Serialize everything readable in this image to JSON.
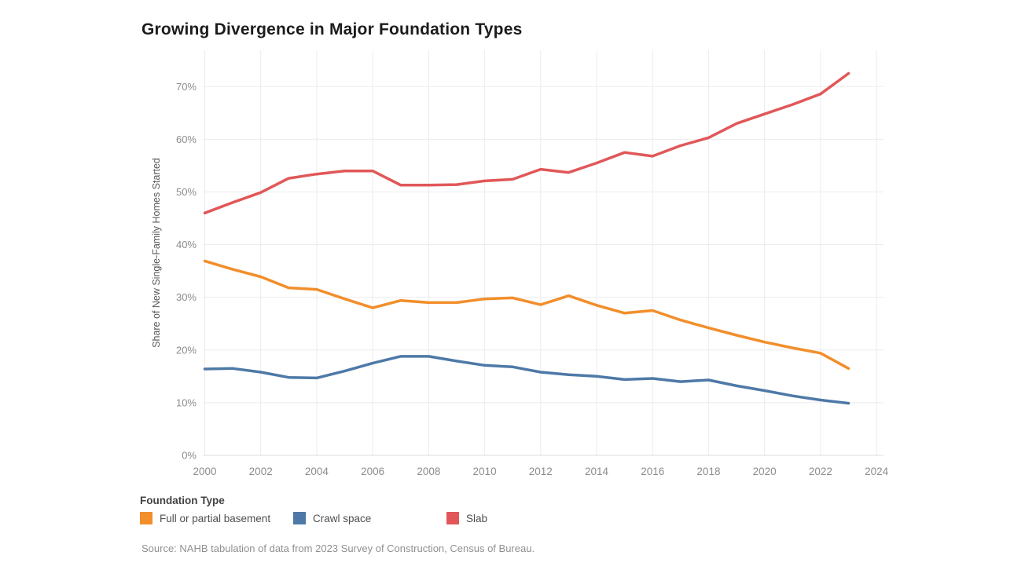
{
  "title": "Growing Divergence in Major Foundation Types",
  "source": "Source: NAHB tabulation of data from 2023 Survey of Construction, Census of Bureau.",
  "legend": {
    "title": "Foundation Type",
    "items": [
      {
        "label": "Full or partial basement",
        "color": "#f28e2b"
      },
      {
        "label": "Crawl space",
        "color": "#4e79a7"
      },
      {
        "label": "Slab",
        "color": "#e15759"
      }
    ]
  },
  "chart_data": {
    "type": "line",
    "title": "Growing Divergence in Major Foundation Types",
    "xlabel": "",
    "ylabel": "Share of New Single-Family Homes Started",
    "x": [
      2000,
      2001,
      2002,
      2003,
      2004,
      2005,
      2006,
      2007,
      2008,
      2009,
      2010,
      2011,
      2012,
      2013,
      2014,
      2015,
      2016,
      2017,
      2018,
      2019,
      2020,
      2021,
      2022,
      2023
    ],
    "series": [
      {
        "name": "Full or partial basement",
        "color": "#f28e2b",
        "values": [
          36.9,
          35.3,
          33.9,
          31.8,
          31.5,
          29.7,
          28.0,
          29.4,
          29.0,
          29.0,
          29.7,
          29.9,
          28.6,
          30.3,
          28.5,
          27.0,
          27.5,
          25.7,
          24.2,
          22.8,
          21.5,
          20.4,
          19.4,
          16.5
        ]
      },
      {
        "name": "Crawl space",
        "color": "#4e79a7",
        "values": [
          16.4,
          16.5,
          15.8,
          14.8,
          14.7,
          16.0,
          17.5,
          18.8,
          18.8,
          17.9,
          17.1,
          16.8,
          15.8,
          15.3,
          15.0,
          14.4,
          14.6,
          14.0,
          14.3,
          13.2,
          12.3,
          11.3,
          10.5,
          9.9
        ]
      },
      {
        "name": "Slab",
        "color": "#e15759",
        "values": [
          46.0,
          48.0,
          49.9,
          52.6,
          53.4,
          54.0,
          54.0,
          51.3,
          51.3,
          51.4,
          52.1,
          52.4,
          54.3,
          53.7,
          55.5,
          57.5,
          56.8,
          58.8,
          60.3,
          63.0,
          64.8,
          66.6,
          68.6,
          72.5
        ]
      }
    ],
    "xticks": [
      2000,
      2002,
      2004,
      2006,
      2008,
      2010,
      2012,
      2014,
      2016,
      2018,
      2020,
      2022,
      2024
    ],
    "yticks": [
      0,
      10,
      20,
      30,
      40,
      50,
      60,
      70
    ],
    "ytick_suffix": "%",
    "xlim": [
      1999.93,
      2024.25
    ],
    "ylim": [
      0,
      76.9
    ],
    "grid": true,
    "legend_position": "bottom"
  }
}
